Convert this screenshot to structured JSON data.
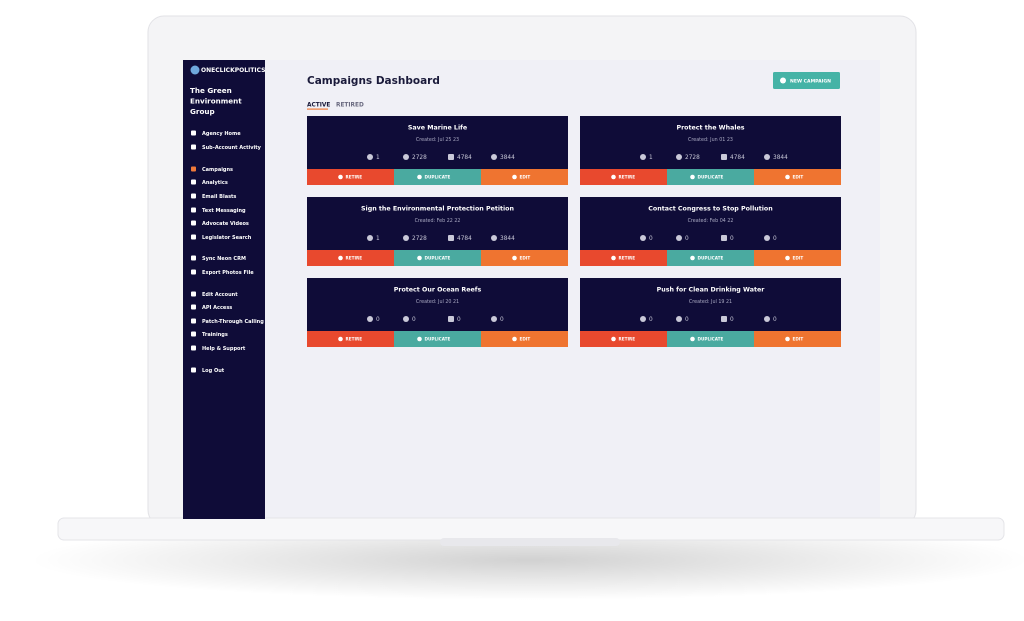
{
  "brand": "ONECLICKPOLITICS",
  "org": "The Green Environment Group",
  "nav": [
    [
      "Agency Home",
      "Sub-Account Activity"
    ],
    [
      "Campaigns",
      "Analytics",
      "Email Blasts",
      "Text Messaging",
      "Advocate Videos",
      "Legislator Search"
    ],
    [
      "Sync Neon CRM",
      "Export Photos File"
    ],
    [
      "Edit Account",
      "API Access",
      "Patch-Through Calling",
      "Trainings",
      "Help & Support"
    ],
    [
      "Log Out"
    ]
  ],
  "header": {
    "title": "Campaigns Dashboard",
    "button": "NEW CAMPAIGN"
  },
  "tabs": [
    "ACTIVE",
    "RETIRED"
  ],
  "actions": [
    "RETIRE",
    "DUPLICATE",
    "EDIT"
  ],
  "campaigns": [
    {
      "title": "Save Marine Life",
      "created": "Created: Jul 25 23",
      "stats": [
        1,
        2728,
        4784,
        3844
      ]
    },
    {
      "title": "Protect the Whales",
      "created": "Created: Jun 01 23",
      "stats": [
        1,
        2728,
        4784,
        3844
      ]
    },
    {
      "title": "Sign the Environmental Protection Petition",
      "created": "Created: Feb 22 22",
      "stats": [
        1,
        2728,
        4784,
        3844
      ]
    },
    {
      "title": "Contact Congress to Stop Pollution",
      "created": "Created: Feb 04 22",
      "stats": [
        0,
        0,
        0,
        0
      ]
    },
    {
      "title": "Protect Our Ocean Reefs",
      "created": "Created: Jul 20 21",
      "stats": [
        0,
        0,
        0,
        0
      ]
    },
    {
      "title": "Push for Clean Drinking Water",
      "created": "Created: Jul 19 21",
      "stats": [
        0,
        0,
        0,
        0
      ]
    }
  ]
}
